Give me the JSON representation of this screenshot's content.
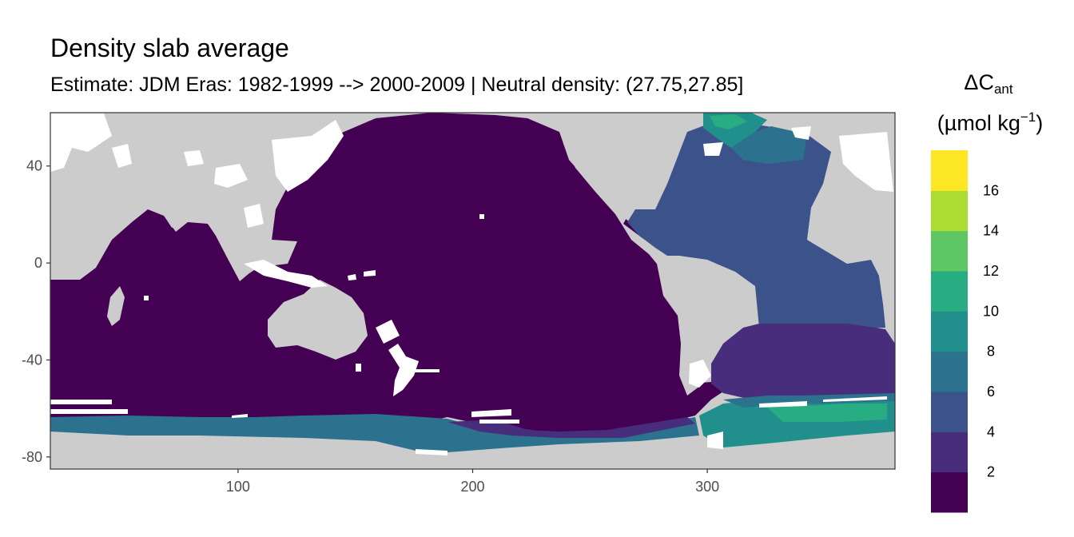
{
  "chart_data": {
    "type": "heatmap",
    "title": "Density slab average",
    "subtitle": "Estimate: JDM Eras: 1982-1999 --> 2000-2009 | Neutral density: (27.75,27.85]",
    "xlabel": "",
    "ylabel": "",
    "xlim": [
      20,
      380
    ],
    "ylim": [
      -85,
      62
    ],
    "x_ticks": [
      "100",
      "200",
      "300"
    ],
    "y_ticks": [
      "40",
      "0",
      "-40",
      "-80"
    ],
    "legend": {
      "title_main": "ΔC",
      "title_sub": "ant",
      "units_prefix": "(µmol kg",
      "units_exp": "−1",
      "units_suffix": ")",
      "position": "right",
      "breaks": [
        0,
        2,
        4,
        6,
        8,
        10,
        12,
        14,
        16,
        18
      ],
      "tick_labels": [
        "2",
        "4",
        "6",
        "8",
        "10",
        "12",
        "14",
        "16"
      ],
      "colors": [
        "#440154",
        "#472D7B",
        "#3B528B",
        "#2C728E",
        "#21908C",
        "#27AD81",
        "#5DC863",
        "#AADC32",
        "#FDE725"
      ]
    },
    "background_colors": {
      "land": "#CCCCCC",
      "no_data": "#FFFFFF"
    },
    "regions": [
      {
        "name": "Pacific, Indian and Southern Ocean interior",
        "value_bin": "0-2"
      },
      {
        "name": "North and equatorial Atlantic",
        "value_bin": "4-6"
      },
      {
        "name": "South Atlantic",
        "value_bin": "2-4"
      },
      {
        "name": "Subpolar North Atlantic / Labrador Sea",
        "value_bin": "8-10"
      },
      {
        "name": "Nordic Seas",
        "value_bin": "10-12"
      },
      {
        "name": "Weddell Sea shelf",
        "value_bin": "8-12"
      },
      {
        "name": "Ross Sea / Antarctic shelf",
        "value_bin": "6-8"
      }
    ]
  }
}
